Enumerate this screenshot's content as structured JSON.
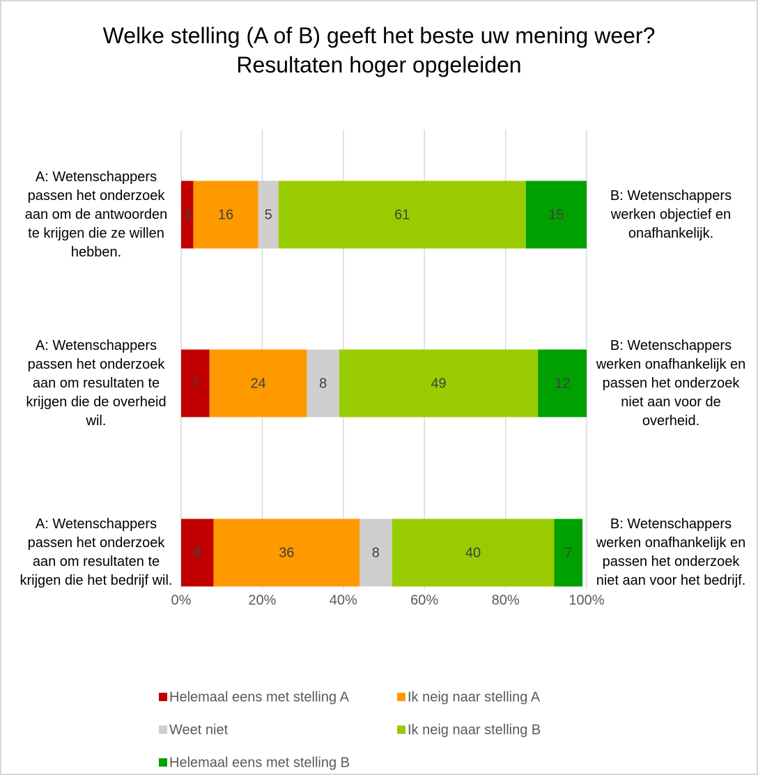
{
  "chart_data": {
    "type": "stacked_bar_horizontal",
    "title": "Welke stelling (A of B) geeft het beste uw mening weer? Resultaten hoger opgeleiden",
    "categories": [
      "A: Wetenschappers passen het onderzoek aan om de antwoorden te krijgen die ze willen hebben.",
      "A: Wetenschappers passen het onderzoek aan om resultaten te krijgen die de overheid wil.",
      "A: Wetenschappers passen het onderzoek aan om resultaten te krijgen die het bedrijf wil."
    ],
    "categories_right": [
      "B: Wetenschappers werken objectief en onafhankelijk.",
      "B: Wetenschappers werken onafhankelijk en passen het onderzoek niet aan voor de overheid.",
      "B: Wetenschappers werken onafhankelijk en passen het onderzoek niet aan voor het bedrijf."
    ],
    "series": [
      {
        "name": "Helemaal eens met stelling A",
        "color": "#c00000",
        "values": [
          3,
          7,
          8
        ]
      },
      {
        "name": "Ik neig naar stelling A",
        "color": "#ff9900",
        "values": [
          16,
          24,
          36
        ]
      },
      {
        "name": "Weet niet",
        "color": "#d0cece",
        "values": [
          5,
          8,
          8
        ]
      },
      {
        "name": "Ik neig naar stelling B",
        "color": "#99cc00",
        "values": [
          61,
          49,
          40
        ]
      },
      {
        "name": "Helemaal eens met stelling B",
        "color": "#00a000",
        "values": [
          15,
          12,
          7
        ]
      }
    ],
    "xlim": [
      0,
      100
    ],
    "xticks": [
      {
        "value": 0,
        "label": "0%"
      },
      {
        "value": 20,
        "label": "20%"
      },
      {
        "value": 40,
        "label": "40%"
      },
      {
        "value": 60,
        "label": "60%"
      },
      {
        "value": 80,
        "label": "80%"
      },
      {
        "value": 100,
        "label": "100%"
      }
    ],
    "grid": true,
    "legend": "bottom"
  }
}
